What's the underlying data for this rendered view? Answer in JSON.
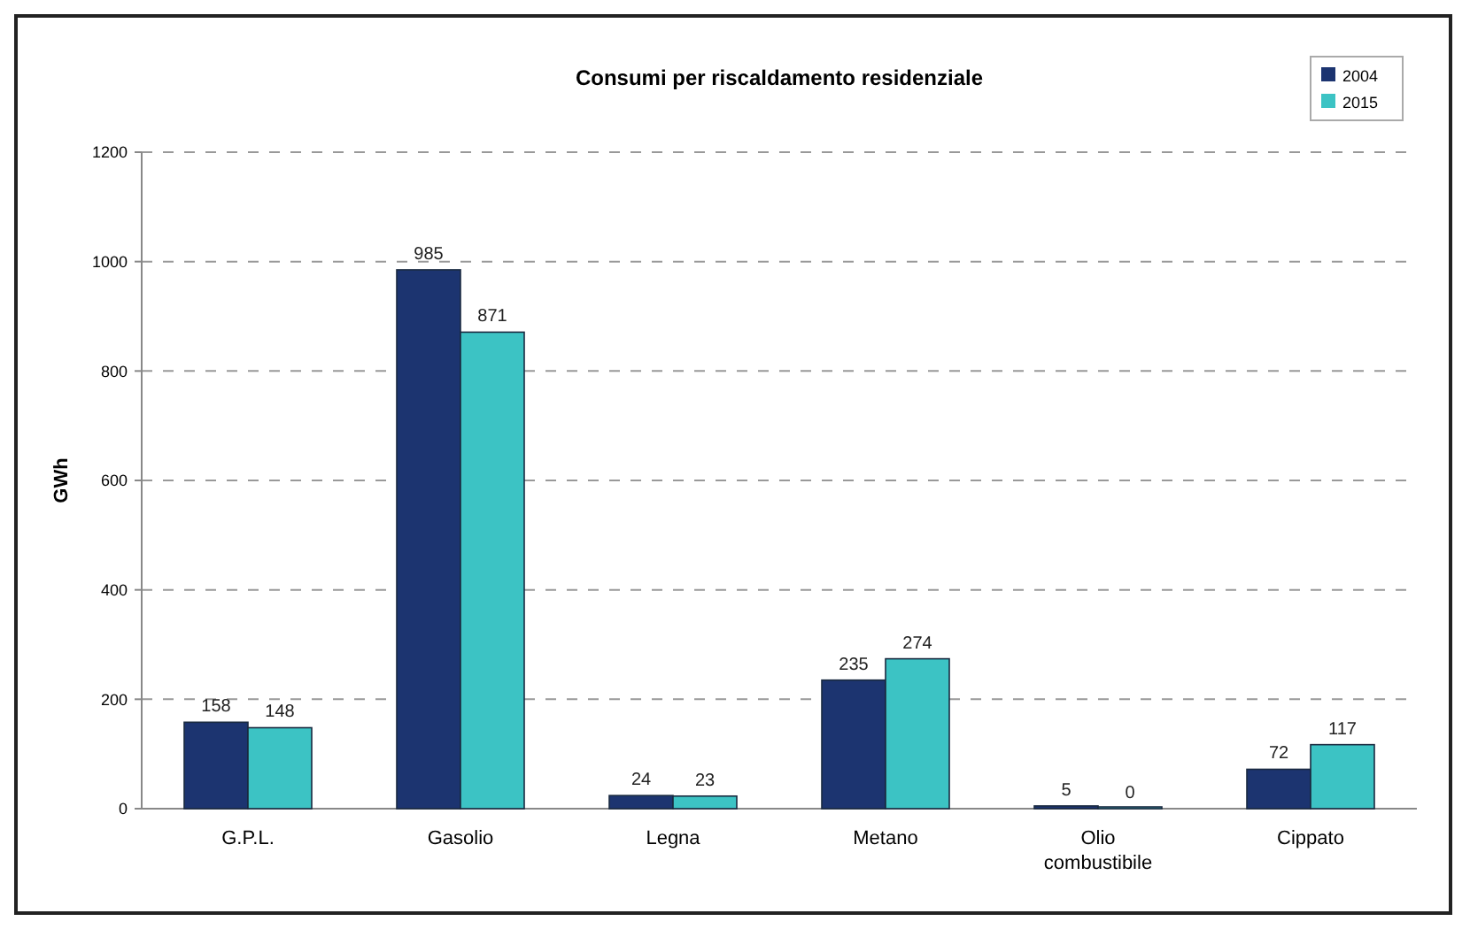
{
  "chart_data": {
    "type": "bar",
    "title": "Consumi per riscaldamento residenziale",
    "ylabel": "GWh",
    "categories": [
      "G.P.L.",
      "Gasolio",
      "Legna",
      "Metano",
      "Olio combustibile",
      "Cippato"
    ],
    "series": [
      {
        "name": "2004",
        "color": "#1c3470",
        "values": [
          158,
          985,
          24,
          235,
          5,
          72
        ]
      },
      {
        "name": "2015",
        "color": "#3cc3c4",
        "values": [
          148,
          871,
          23,
          274,
          0,
          117
        ]
      }
    ],
    "ylim": [
      0,
      1200
    ],
    "yticks": [
      0,
      200,
      400,
      600,
      800,
      1000,
      1200
    ],
    "grid": "y",
    "legend": "top right",
    "data_labels": true
  }
}
